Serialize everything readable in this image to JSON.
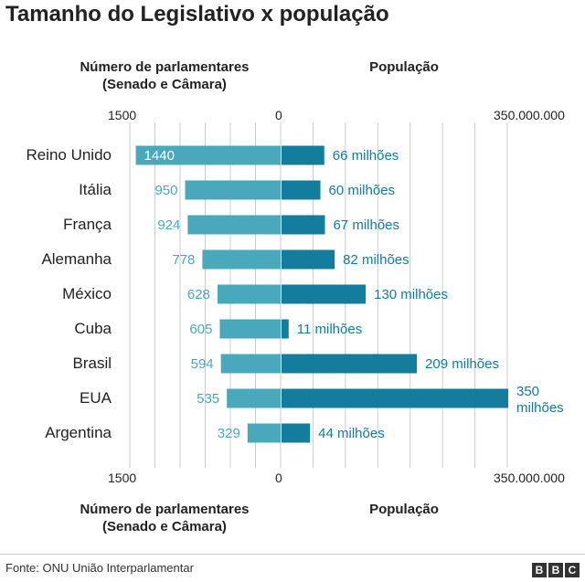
{
  "title": "Tamanho do Legislativo x população",
  "left_header": {
    "line1": "Número de parlamentares",
    "line2": "(Senado e Câmara)"
  },
  "right_header": "População",
  "left_axis": {
    "max_label": "1500",
    "zero_label": "0"
  },
  "right_axis": {
    "max_label": "350.000.000"
  },
  "footer": "Fonte: ONU União Interparlamentar",
  "logo": [
    "B",
    "B",
    "C"
  ],
  "colors": {
    "left_bar": "#4aa8bd",
    "right_bar": "#147c9c",
    "left_label": "#4aa8bd",
    "right_label": "#147c9c",
    "grid": "#cccccc"
  },
  "chart_data": {
    "type": "bar",
    "categories": [
      "Reino Unido",
      "Itália",
      "França",
      "Alemanha",
      "México",
      "Cuba",
      "Brasil",
      "EUA",
      "Argentina"
    ],
    "series": [
      {
        "name": "Número de parlamentares (Senado e Câmara)",
        "values": [
          1440,
          950,
          924,
          778,
          628,
          605,
          594,
          535,
          329
        ],
        "labels": [
          "1440",
          "950",
          "924",
          "778",
          "628",
          "605",
          "594",
          "535",
          "329"
        ]
      },
      {
        "name": "População",
        "values": [
          66000000,
          60000000,
          67000000,
          82000000,
          130000000,
          11000000,
          209000000,
          350000000,
          44000000
        ],
        "labels": [
          "66 milhões",
          "60 milhões",
          "67 milhões",
          "82 milhões",
          "130 milhões",
          "11 milhões",
          "209 milhões",
          "350 milhões",
          "44 milhões"
        ]
      }
    ],
    "left_xlim": [
      0,
      1500
    ],
    "right_xlim": [
      0,
      350000000
    ],
    "grid": true
  }
}
